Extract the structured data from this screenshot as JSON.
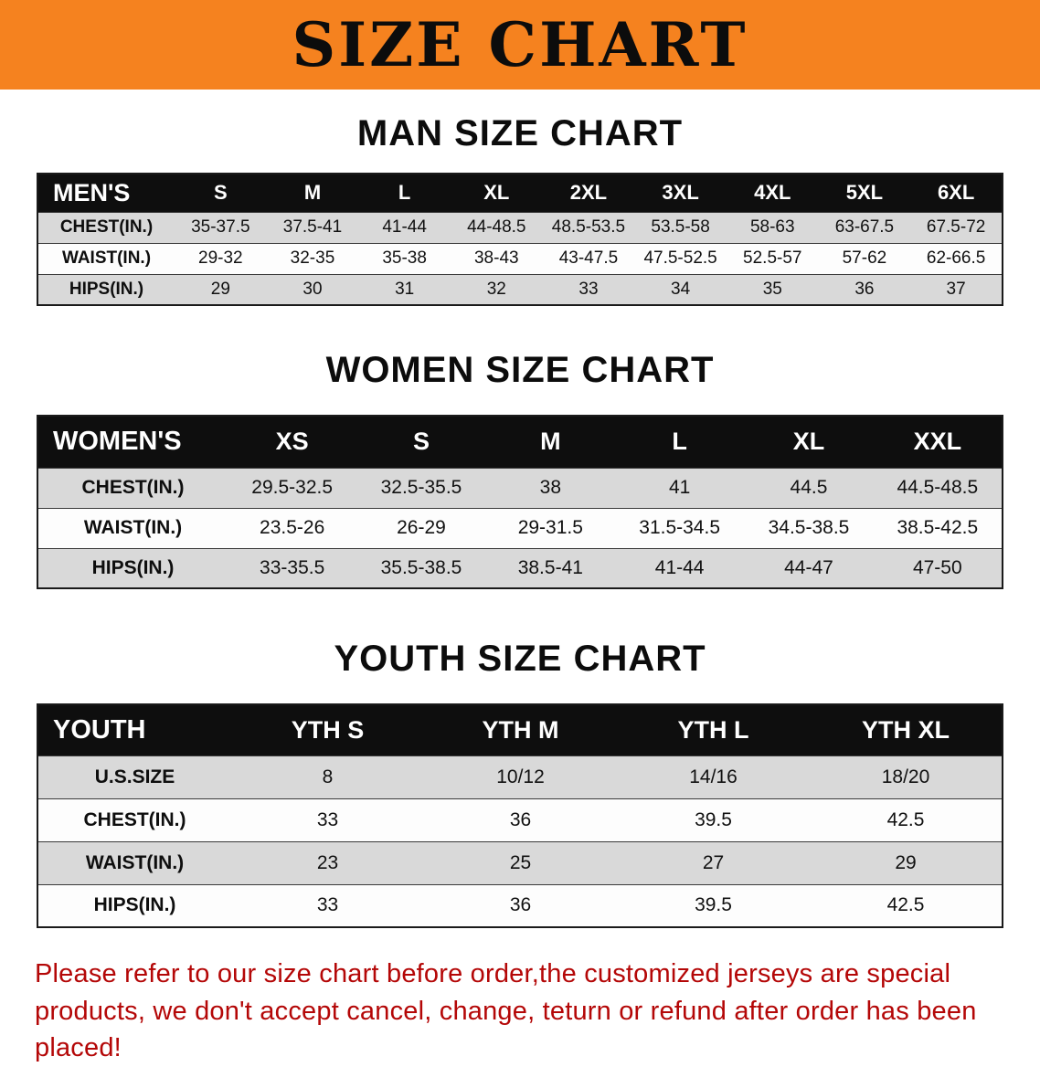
{
  "banner": {
    "title": "SIZE CHART",
    "bg_color": "#F5821F",
    "text_color": "#0c0c0c"
  },
  "colors": {
    "table_header_bg": "#0e0e0e",
    "table_header_text": "#ffffff",
    "row_shade": "#d9d9d9",
    "disclaimer_red": "#b40707"
  },
  "men": {
    "heading": "MAN SIZE CHART",
    "table": {
      "header": [
        "MEN'S",
        "S",
        "M",
        "L",
        "XL",
        "2XL",
        "3XL",
        "4XL",
        "5XL",
        "6XL"
      ],
      "rows": [
        {
          "label": "CHEST(IN.)",
          "values": [
            "35-37.5",
            "37.5-41",
            "41-44",
            "44-48.5",
            "48.5-53.5",
            "53.5-58",
            "58-63",
            "63-67.5",
            "67.5-72"
          ]
        },
        {
          "label": "WAIST(IN.)",
          "values": [
            "29-32",
            "32-35",
            "35-38",
            "38-43",
            "43-47.5",
            "47.5-52.5",
            "52.5-57",
            "57-62",
            "62-66.5"
          ]
        },
        {
          "label": "HIPS(IN.)",
          "values": [
            "29",
            "30",
            "31",
            "32",
            "33",
            "34",
            "35",
            "36",
            "37"
          ]
        }
      ]
    }
  },
  "women": {
    "heading": "WOMEN SIZE CHART",
    "table": {
      "header": [
        "WOMEN'S",
        "XS",
        "S",
        "M",
        "L",
        "XL",
        "XXL"
      ],
      "rows": [
        {
          "label": "CHEST(IN.)",
          "values": [
            "29.5-32.5",
            "32.5-35.5",
            "38",
            "41",
            "44.5",
            "44.5-48.5"
          ]
        },
        {
          "label": "WAIST(IN.)",
          "values": [
            "23.5-26",
            "26-29",
            "29-31.5",
            "31.5-34.5",
            "34.5-38.5",
            "38.5-42.5"
          ]
        },
        {
          "label": "HIPS(IN.)",
          "values": [
            "33-35.5",
            "35.5-38.5",
            "38.5-41",
            "41-44",
            "44-47",
            "47-50"
          ]
        }
      ]
    }
  },
  "youth": {
    "heading": "YOUTH SIZE CHART",
    "table": {
      "header": [
        "YOUTH",
        "YTH S",
        "YTH M",
        "YTH L",
        "YTH XL"
      ],
      "rows": [
        {
          "label": "U.S.SIZE",
          "values": [
            "8",
            "10/12",
            "14/16",
            "18/20"
          ]
        },
        {
          "label": "CHEST(IN.)",
          "values": [
            "33",
            "36",
            "39.5",
            "42.5"
          ]
        },
        {
          "label": "WAIST(IN.)",
          "values": [
            "23",
            "25",
            "27",
            "29"
          ]
        },
        {
          "label": "HIPS(IN.)",
          "values": [
            "33",
            "36",
            "39.5",
            "42.5"
          ]
        }
      ]
    }
  },
  "footer": {
    "text": "Please refer to our size chart before order,the customized jerseys are special products, we don't accept cancel, change, teturn or refund after order has been placed!"
  }
}
